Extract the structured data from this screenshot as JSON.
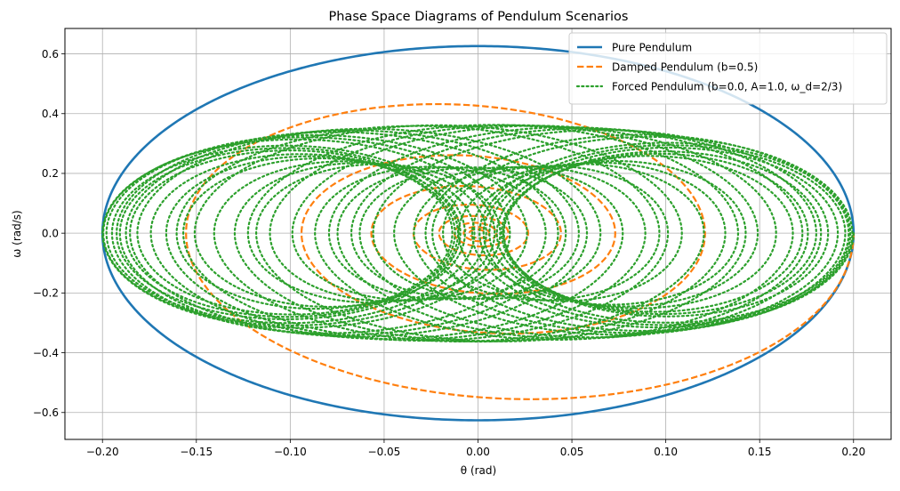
{
  "chart_data": {
    "type": "line",
    "title": "Phase Space Diagrams of Pendulum Scenarios",
    "xlabel": "θ (rad)",
    "ylabel": "ω (rad/s)",
    "xlim": [
      -0.22,
      0.22
    ],
    "ylim": [
      -0.69,
      0.685
    ],
    "xticks": [
      -0.2,
      -0.15,
      -0.1,
      -0.05,
      0.0,
      0.05,
      0.1,
      0.15,
      0.2
    ],
    "xtick_labels": [
      "−0.20",
      "−0.15",
      "−0.10",
      "−0.05",
      "0.00",
      "0.05",
      "0.10",
      "0.15",
      "0.20"
    ],
    "yticks": [
      -0.6,
      -0.4,
      -0.2,
      0.0,
      0.2,
      0.4,
      0.6
    ],
    "ytick_labels": [
      "−0.6",
      "−0.4",
      "−0.2",
      "0.0",
      "0.2",
      "0.4",
      "0.6"
    ],
    "grid": true,
    "legend_position": "top-right",
    "series": [
      {
        "name": "Pure Pendulum",
        "color": "#1f77b4",
        "style": "solid",
        "model": {
          "kind": "ellipse",
          "theta_amplitude": 0.2,
          "omega_amplitude": 0.626
        }
      },
      {
        "name": "Damped Pendulum (b=0.5)",
        "color": "#ff7f0e",
        "style": "dashed",
        "model": {
          "kind": "damped",
          "theta0": 0.2,
          "omega_natural": 3.13,
          "damping": 0.25,
          "t_end": 16
        }
      },
      {
        "name": "Forced Pendulum (b=0.0, A=1.0, ω_d=2/3)",
        "color": "#2ca02c",
        "style": "dotted",
        "model": {
          "kind": "forced",
          "theta0": 0.2,
          "omega_natural": 3.13,
          "omega_drive": 0.6667,
          "drive_amplitude": 1.0,
          "t_end": 80
        }
      }
    ]
  }
}
